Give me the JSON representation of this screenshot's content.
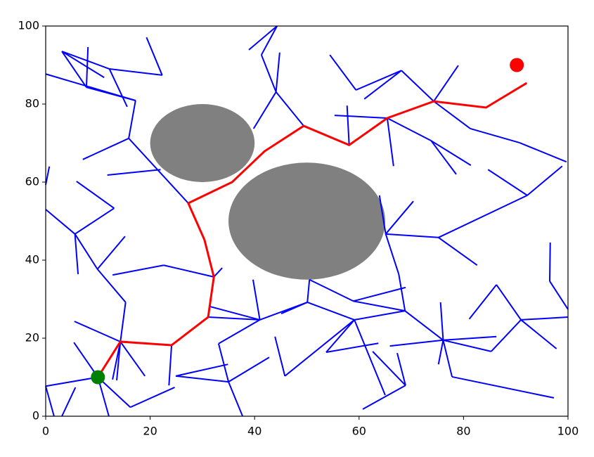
{
  "chart_data": {
    "type": "line",
    "xlim": [
      0,
      100
    ],
    "ylim": [
      0,
      100
    ],
    "xticks": [
      0,
      20,
      40,
      60,
      80,
      100
    ],
    "yticks": [
      0,
      20,
      40,
      60,
      80,
      100
    ],
    "obstacles": {
      "color": "#808080",
      "items": [
        {
          "x": 30,
          "y": 70,
          "r": 10
        },
        {
          "x": 50,
          "y": 50,
          "r": 15
        }
      ]
    },
    "tree": {
      "color": "#0000ff",
      "segments": [
        {
          "x": [
            10,
            0
          ],
          "y": [
            10,
            7.7
          ]
        },
        {
          "x": [
            0,
            1.6
          ],
          "y": [
            7.7,
            0
          ]
        },
        {
          "x": [
            10,
            16.2
          ],
          "y": [
            10,
            2.3
          ]
        },
        {
          "x": [
            16.2,
            24.7
          ],
          "y": [
            2.3,
            7.4
          ]
        },
        {
          "x": [
            3.1,
            5.7
          ],
          "y": [
            0,
            7.4
          ]
        },
        {
          "x": [
            10,
            5.4
          ],
          "y": [
            10,
            18.9
          ]
        },
        {
          "x": [
            10,
            12.1
          ],
          "y": [
            10,
            0
          ]
        },
        {
          "x": [
            14.3,
            5.5
          ],
          "y": [
            19.1,
            24.3
          ]
        },
        {
          "x": [
            14.3,
            19
          ],
          "y": [
            19.1,
            10.3
          ]
        },
        {
          "x": [
            14.3,
            12.8
          ],
          "y": [
            19.1,
            9.4
          ]
        },
        {
          "x": [
            14.3,
            13.6
          ],
          "y": [
            19.1,
            9.2
          ]
        },
        {
          "x": [
            14.3,
            15.3
          ],
          "y": [
            19.1,
            29.2
          ]
        },
        {
          "x": [
            15.3,
            9.9
          ],
          "y": [
            29.2,
            37.7
          ]
        },
        {
          "x": [
            9.9,
            5.6
          ],
          "y": [
            37.7,
            46.7
          ]
        },
        {
          "x": [
            9.9,
            15.2
          ],
          "y": [
            37.7,
            46.1
          ]
        },
        {
          "x": [
            5.6,
            6.2
          ],
          "y": [
            46.7,
            36.4
          ]
        },
        {
          "x": [
            5.6,
            0
          ],
          "y": [
            46.7,
            53
          ]
        },
        {
          "x": [
            5.6,
            13.1
          ],
          "y": [
            46.7,
            53.3
          ]
        },
        {
          "x": [
            13.1,
            5.9
          ],
          "y": [
            53.3,
            60.2
          ]
        },
        {
          "x": [
            0,
            0.7
          ],
          "y": [
            59.3,
            64
          ]
        },
        {
          "x": [
            24.1,
            23.6
          ],
          "y": [
            18.2,
            7.9
          ]
        },
        {
          "x": [
            24.9,
            34.9
          ],
          "y": [
            10.3,
            13.3
          ]
        },
        {
          "x": [
            24.9,
            35
          ],
          "y": [
            10.3,
            8.8
          ]
        },
        {
          "x": [
            35,
            42.8
          ],
          "y": [
            8.8,
            15.1
          ]
        },
        {
          "x": [
            35,
            37.7
          ],
          "y": [
            8.8,
            0
          ]
        },
        {
          "x": [
            35,
            33.1
          ],
          "y": [
            8.8,
            18.6
          ]
        },
        {
          "x": [
            33.1,
            41
          ],
          "y": [
            18.6,
            24.7
          ]
        },
        {
          "x": [
            31.1,
            41
          ],
          "y": [
            25.4,
            24.7
          ]
        },
        {
          "x": [
            41,
            39.7
          ],
          "y": [
            24.7,
            35
          ]
        },
        {
          "x": [
            41,
            31.5
          ],
          "y": [
            24.7,
            28.1
          ]
        },
        {
          "x": [
            32.2,
            33.8
          ],
          "y": [
            35.7,
            38
          ]
        },
        {
          "x": [
            32.2,
            22.6
          ],
          "y": [
            35.7,
            38.7
          ]
        },
        {
          "x": [
            22.6,
            12.8
          ],
          "y": [
            38.7,
            36.2
          ]
        },
        {
          "x": [
            41,
            50.1
          ],
          "y": [
            24.7,
            29.2
          ]
        },
        {
          "x": [
            50.1,
            59.1
          ],
          "y": [
            29.2,
            24.7
          ]
        },
        {
          "x": [
            50.1,
            45.1
          ],
          "y": [
            29.2,
            26.3
          ]
        },
        {
          "x": [
            50.1,
            50.5
          ],
          "y": [
            29.2,
            35
          ]
        },
        {
          "x": [
            50.5,
            58.9
          ],
          "y": [
            35,
            29.5
          ]
        },
        {
          "x": [
            58.9,
            68.9
          ],
          "y": [
            29.5,
            33
          ]
        },
        {
          "x": [
            58.9,
            68.8
          ],
          "y": [
            29.5,
            27
          ]
        },
        {
          "x": [
            68.8,
            59.1
          ],
          "y": [
            27,
            24.7
          ]
        },
        {
          "x": [
            68.8,
            67.6
          ],
          "y": [
            27,
            36.4
          ]
        },
        {
          "x": [
            67.6,
            65.1
          ],
          "y": [
            36.4,
            46.7
          ]
        },
        {
          "x": [
            65.1,
            63.9
          ],
          "y": [
            46.7,
            56.6
          ]
        },
        {
          "x": [
            65.1,
            70.4
          ],
          "y": [
            46.7,
            55.1
          ]
        },
        {
          "x": [
            65.1,
            75.2
          ],
          "y": [
            46.7,
            45.8
          ]
        },
        {
          "x": [
            75.2,
            82.6
          ],
          "y": [
            45.8,
            38.7
          ]
        },
        {
          "x": [
            75.2,
            92.2
          ],
          "y": [
            45.8,
            56.6
          ]
        },
        {
          "x": [
            92.2,
            98.9
          ],
          "y": [
            56.6,
            64.1
          ]
        },
        {
          "x": [
            92.2,
            84.7
          ],
          "y": [
            56.6,
            63.2
          ]
        },
        {
          "x": [
            59.1,
            45.8
          ],
          "y": [
            24.7,
            10.3
          ]
        },
        {
          "x": [
            45.8,
            43.9
          ],
          "y": [
            10.3,
            20.4
          ]
        },
        {
          "x": [
            59.1,
            53.7
          ],
          "y": [
            24.7,
            16.4
          ]
        },
        {
          "x": [
            53.7,
            63.7
          ],
          "y": [
            16.4,
            18.7
          ]
        },
        {
          "x": [
            59.1,
            65
          ],
          "y": [
            24.7,
            5.4
          ]
        },
        {
          "x": [
            62.6,
            68.9
          ],
          "y": [
            16.6,
            7.9
          ]
        },
        {
          "x": [
            68.9,
            60.7
          ],
          "y": [
            7.9,
            1.8
          ]
        },
        {
          "x": [
            68.9,
            67.3
          ],
          "y": [
            7.9,
            16.2
          ]
        },
        {
          "x": [
            68.8,
            76.1
          ],
          "y": [
            27,
            19.5
          ]
        },
        {
          "x": [
            76.1,
            65.9
          ],
          "y": [
            19.5,
            18
          ]
        },
        {
          "x": [
            76.1,
            75.6
          ],
          "y": [
            19.5,
            29.2
          ]
        },
        {
          "x": [
            76.1,
            77.8
          ],
          "y": [
            19.5,
            10.1
          ]
        },
        {
          "x": [
            77.8,
            97.3
          ],
          "y": [
            10.1,
            4.7
          ]
        },
        {
          "x": [
            76.1,
            75.2
          ],
          "y": [
            19.5,
            13.3
          ]
        },
        {
          "x": [
            76.1,
            86.3
          ],
          "y": [
            19.5,
            20.4
          ]
        },
        {
          "x": [
            76.1,
            85.3
          ],
          "y": [
            19.5,
            16.6
          ]
        },
        {
          "x": [
            85.3,
            91
          ],
          "y": [
            16.6,
            24.7
          ]
        },
        {
          "x": [
            91,
            86.3
          ],
          "y": [
            24.7,
            33.7
          ]
        },
        {
          "x": [
            86.3,
            81.1
          ],
          "y": [
            33.7,
            24.9
          ]
        },
        {
          "x": [
            91,
            100
          ],
          "y": [
            24.7,
            25.4
          ]
        },
        {
          "x": [
            91,
            97.8
          ],
          "y": [
            24.7,
            17.3
          ]
        },
        {
          "x": [
            100,
            96.5
          ],
          "y": [
            27.4,
            34.6
          ]
        },
        {
          "x": [
            96.5,
            96.6
          ],
          "y": [
            34.6,
            44.5
          ]
        },
        {
          "x": [
            27.3,
            15.9
          ],
          "y": [
            54.6,
            71.2
          ]
        },
        {
          "x": [
            15.9,
            17.2
          ],
          "y": [
            71.2,
            80.9
          ]
        },
        {
          "x": [
            15.9,
            7.1
          ],
          "y": [
            71.2,
            65.8
          ]
        },
        {
          "x": [
            22,
            11.8
          ],
          "y": [
            63.2,
            61.8
          ]
        },
        {
          "x": [
            17.2,
            0
          ],
          "y": [
            80.9,
            87.7
          ]
        },
        {
          "x": [
            17.2,
            7.8
          ],
          "y": [
            80.9,
            84.3
          ]
        },
        {
          "x": [
            7.8,
            3.1
          ],
          "y": [
            84.3,
            93.5
          ]
        },
        {
          "x": [
            3.1,
            11.2
          ],
          "y": [
            93.5,
            86.8
          ]
        },
        {
          "x": [
            7.8,
            8.1
          ],
          "y": [
            84.3,
            94.6
          ]
        },
        {
          "x": [
            3.1,
            12.2
          ],
          "y": [
            93.5,
            89
          ]
        },
        {
          "x": [
            12.2,
            15.6
          ],
          "y": [
            89,
            79.3
          ]
        },
        {
          "x": [
            12.2,
            22.3
          ],
          "y": [
            89,
            87.4
          ]
        },
        {
          "x": [
            22.3,
            19.3
          ],
          "y": [
            87.4,
            97.1
          ]
        },
        {
          "x": [
            49.4,
            44.1
          ],
          "y": [
            74.4,
            83.1
          ]
        },
        {
          "x": [
            44.1,
            39.8
          ],
          "y": [
            83.1,
            73.7
          ]
        },
        {
          "x": [
            44.1,
            41.3
          ],
          "y": [
            83.1,
            92.6
          ]
        },
        {
          "x": [
            41.3,
            44.3
          ],
          "y": [
            92.6,
            100
          ]
        },
        {
          "x": [
            44.1,
            44.8
          ],
          "y": [
            83.1,
            93.2
          ]
        },
        {
          "x": [
            44.3,
            38.9
          ],
          "y": [
            100,
            93.9
          ]
        },
        {
          "x": [
            58.1,
            57.7
          ],
          "y": [
            69.5,
            79.6
          ]
        },
        {
          "x": [
            55.3,
            65.4
          ],
          "y": [
            77.1,
            76.4
          ]
        },
        {
          "x": [
            65.4,
            66.6
          ],
          "y": [
            76.4,
            64.1
          ]
        },
        {
          "x": [
            65.4,
            73.8
          ],
          "y": [
            76.4,
            70.6
          ]
        },
        {
          "x": [
            73.8,
            78.6
          ],
          "y": [
            70.6,
            62
          ]
        },
        {
          "x": [
            73.8,
            81.4
          ],
          "y": [
            70.6,
            64.3
          ]
        },
        {
          "x": [
            74.3,
            68.1
          ],
          "y": [
            80.7,
            88.6
          ]
        },
        {
          "x": [
            68.1,
            59.4
          ],
          "y": [
            88.6,
            83.6
          ]
        },
        {
          "x": [
            59.4,
            54.4
          ],
          "y": [
            83.6,
            92.6
          ]
        },
        {
          "x": [
            68.1,
            61
          ],
          "y": [
            88.6,
            81.3
          ]
        },
        {
          "x": [
            74.3,
            79
          ],
          "y": [
            80.7,
            89.9
          ]
        },
        {
          "x": [
            74.3,
            81.3
          ],
          "y": [
            80.7,
            73.7
          ]
        },
        {
          "x": [
            81.3,
            90.7
          ],
          "y": [
            73.7,
            70.1
          ]
        },
        {
          "x": [
            90.7,
            99.7
          ],
          "y": [
            70.1,
            65.2
          ]
        }
      ]
    },
    "path": {
      "color": "#ff0000",
      "x": [
        10,
        14.3,
        24.1,
        31.1,
        32.2,
        30.4,
        27.3,
        35.7,
        41.9,
        49.4,
        58.1,
        65.4,
        74.3,
        84.3,
        92.1
      ],
      "y": [
        10,
        19.1,
        18.2,
        25.4,
        35.7,
        45.2,
        54.6,
        60,
        67.9,
        74.4,
        69.5,
        76.4,
        80.7,
        79.1,
        85.4
      ]
    },
    "start": {
      "color": "#008000",
      "x": 10,
      "y": 10
    },
    "goal": {
      "color": "#ff0000",
      "x": 90.2,
      "y": 90
    }
  }
}
